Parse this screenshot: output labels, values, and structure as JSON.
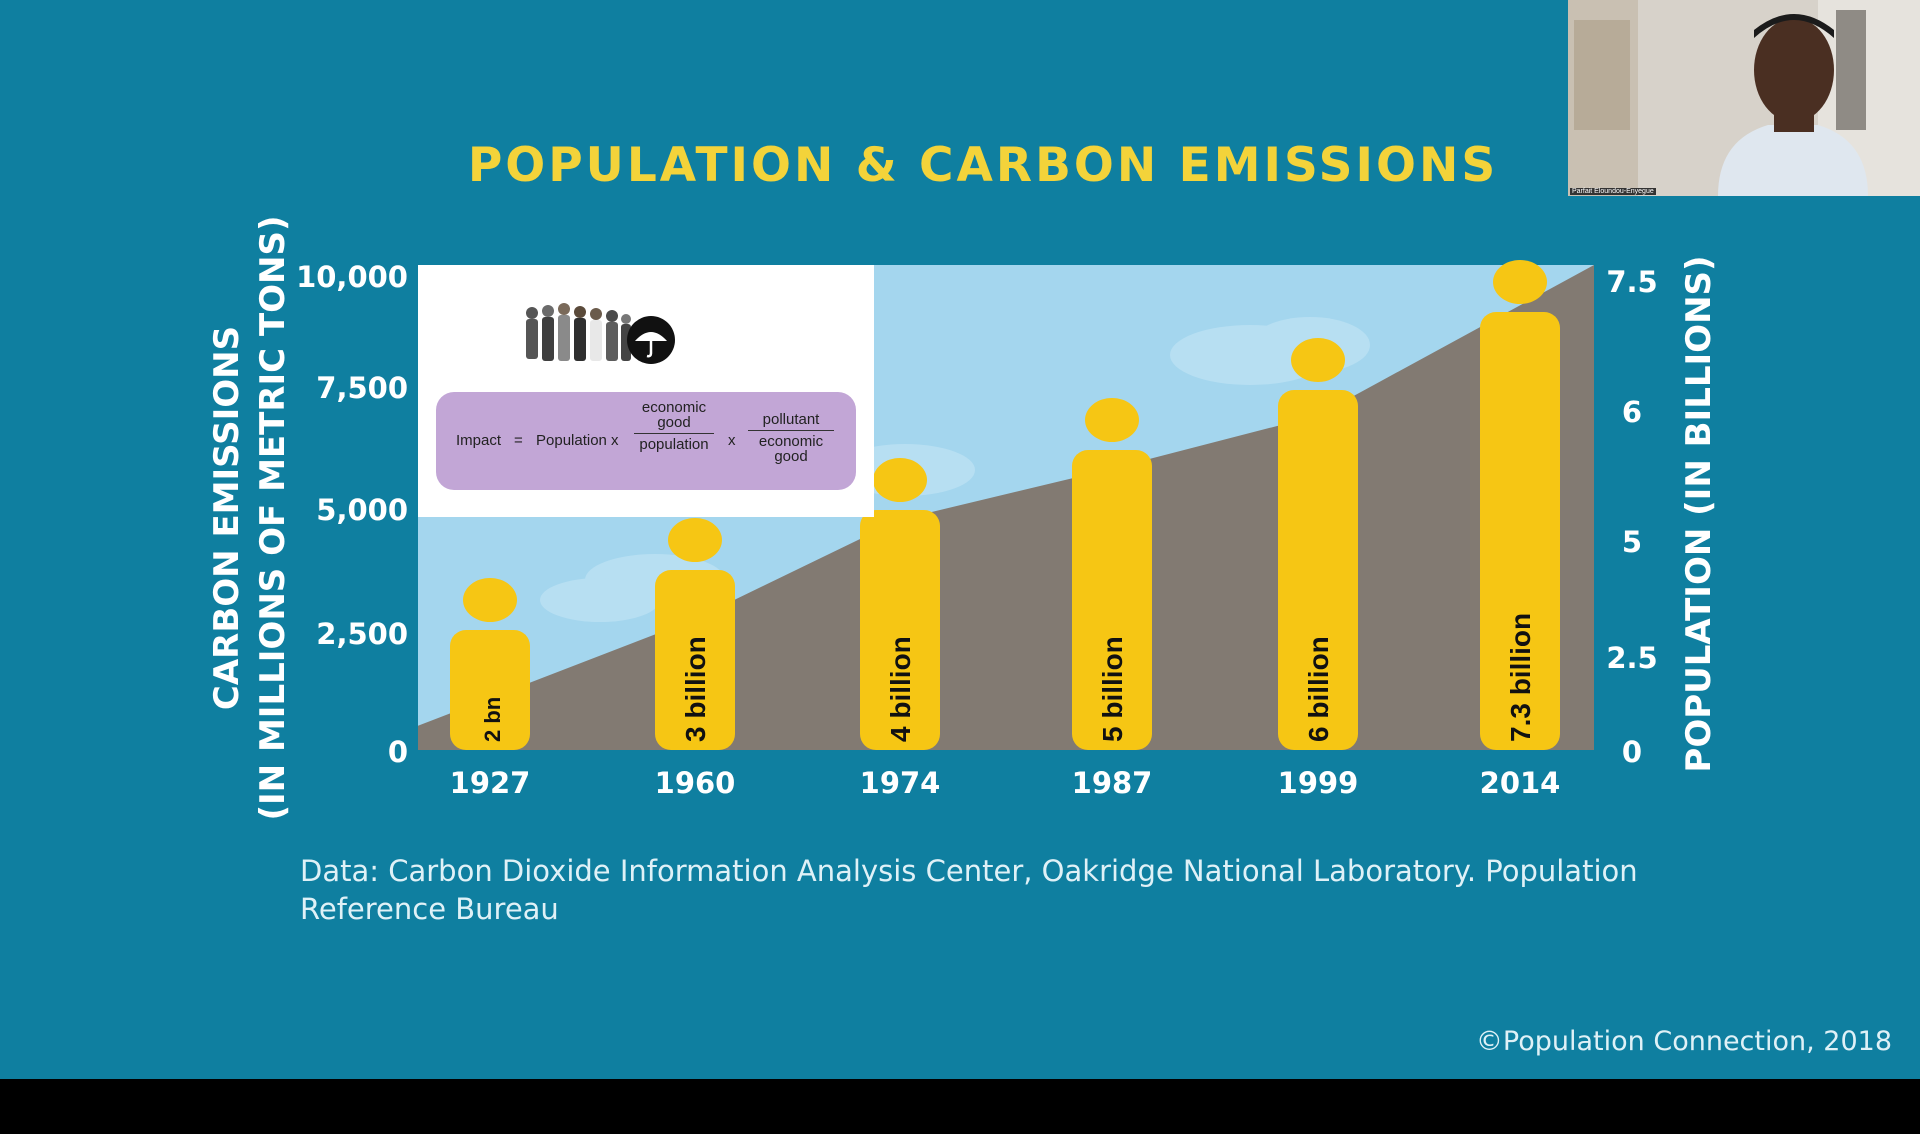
{
  "slide": {
    "title": "POPULATION & CARBON EMISSIONS",
    "source": "Data: Carbon Dioxide Information Analysis Center, Oakridge National Laboratory. Population Reference Bureau",
    "copyright": "©Population Connection, 2018"
  },
  "inset": {
    "formula_lhs": "Impact",
    "formula_eq": "=",
    "formula_term1": "Population x",
    "frac1_num": "economic good",
    "frac1_den": "population",
    "times": "x",
    "frac2_num": "pollutant",
    "frac2_den": "economic good"
  },
  "webcam": {
    "name": "Parfait Eloundou-Enyegue"
  },
  "chart_data": {
    "type": "area+bar",
    "title": "POPULATION & CARBON EMISSIONS",
    "categories": [
      "1927",
      "1960",
      "1974",
      "1987",
      "1999",
      "2014"
    ],
    "left_axis": {
      "label_line1": "CARBON EMISSIONS",
      "label_line2": "(IN MILLIONS OF METRIC TONS)",
      "ticks": [
        "0",
        "2,500",
        "5,000",
        "7,500",
        "10,000"
      ],
      "ylim": [
        0,
        10000
      ]
    },
    "right_axis": {
      "label": "POPULATION (IN BILLIONS)",
      "ticks": [
        "0",
        "2.5",
        "5",
        "6",
        "7.5"
      ]
    },
    "series": [
      {
        "name": "Carbon emissions",
        "type": "area",
        "color": "#827a72",
        "points": [
          {
            "x": 1900,
            "y": 500
          },
          {
            "x": 1960,
            "y": 2700
          },
          {
            "x": 1974,
            "y": 4750
          },
          {
            "x": 1987,
            "y": 5800
          },
          {
            "x": 1999,
            "y": 6900
          },
          {
            "x": 2014,
            "y": 10000
          }
        ]
      },
      {
        "name": "Population",
        "type": "bar",
        "color": "#f6c614",
        "values": [
          2,
          3,
          4,
          5,
          6,
          7.3
        ],
        "labels": [
          "2 bn",
          "3 billion",
          "4 billion",
          "5 billion",
          "6 billion",
          "7.3 billion"
        ]
      }
    ],
    "background": {
      "sky": "#a4d6ee"
    },
    "grid": false
  }
}
